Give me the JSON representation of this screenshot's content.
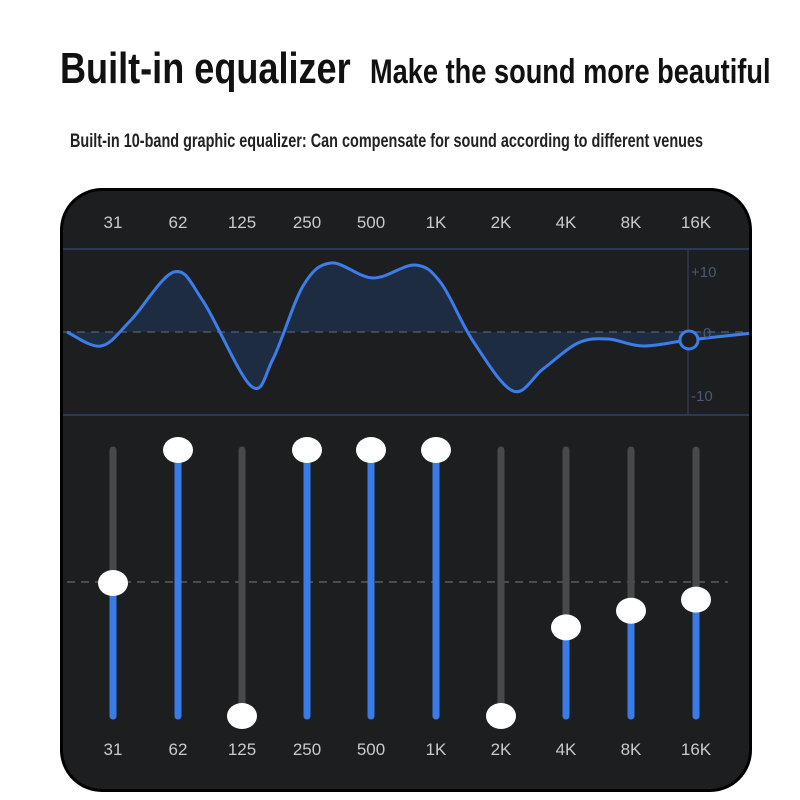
{
  "header": {
    "title": "Built-in equalizer",
    "tagline": "Make the sound more beautiful",
    "subtitle": "Built-in 10-band graphic equalizer: Can compensate for sound according to different venues"
  },
  "equalizer": {
    "bands": [
      "31",
      "62",
      "125",
      "250",
      "500",
      "1K",
      "2K",
      "4K",
      "8K",
      "16K"
    ],
    "gains_db": [
      0,
      12,
      -12,
      12,
      12,
      12,
      -12,
      -4,
      -2.5,
      -1.5
    ],
    "range_db": [
      -12,
      12
    ],
    "graph_labels": {
      "top": "+10",
      "zero": "0",
      "bottom": "-10"
    },
    "colors": {
      "accent": "#3a7be8",
      "track": "#48494b",
      "panel": "#1d1e20"
    }
  }
}
